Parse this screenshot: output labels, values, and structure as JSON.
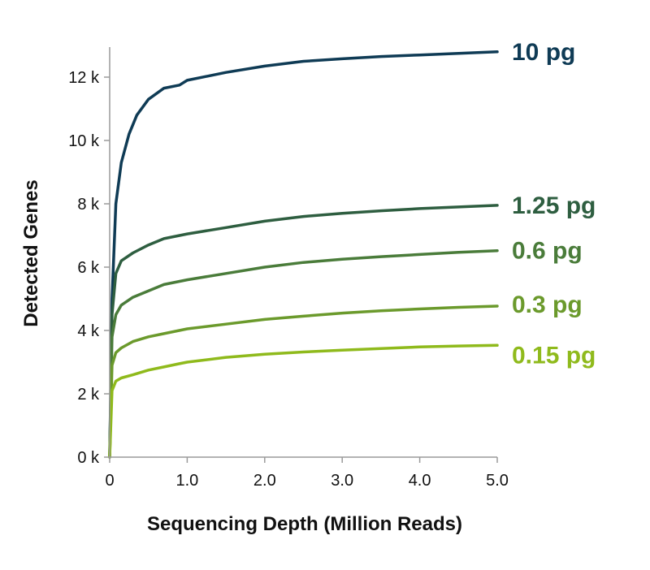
{
  "chart_data": {
    "type": "line",
    "title": "",
    "xlabel": "Sequencing Depth (Million Reads)",
    "ylabel": "Detected Genes",
    "xlim": [
      0,
      5
    ],
    "ylim": [
      0,
      12000
    ],
    "x_ticks": [
      0,
      1,
      2,
      3,
      4,
      5
    ],
    "x_tick_labels": [
      "0",
      "1.0",
      "2.0",
      "3.0",
      "4.0",
      "5.0"
    ],
    "y_ticks": [
      0,
      2000,
      4000,
      6000,
      8000,
      10000,
      12000
    ],
    "y_tick_labels": [
      "0 k",
      "2 k",
      "4 k",
      "6 k",
      "8 k",
      "10 k",
      "12 k"
    ],
    "grid": false,
    "legend": "labels at line ends (right)",
    "series": [
      {
        "name": "10 pg",
        "color": "#0f3b55",
        "points": [
          [
            0,
            0
          ],
          [
            0.03,
            5000
          ],
          [
            0.08,
            8000
          ],
          [
            0.15,
            9300
          ],
          [
            0.25,
            10200
          ],
          [
            0.35,
            10800
          ],
          [
            0.5,
            11300
          ],
          [
            0.7,
            11650
          ],
          [
            0.9,
            11750
          ],
          [
            1.0,
            11900
          ],
          [
            1.5,
            12150
          ],
          [
            2.0,
            12350
          ],
          [
            2.5,
            12500
          ],
          [
            3.0,
            12580
          ],
          [
            3.5,
            12650
          ],
          [
            4.0,
            12700
          ],
          [
            4.5,
            12750
          ],
          [
            5.0,
            12800
          ]
        ]
      },
      {
        "name": "1.25 pg",
        "color": "#2e5e40",
        "points": [
          [
            0,
            0
          ],
          [
            0.03,
            4500
          ],
          [
            0.08,
            5800
          ],
          [
            0.15,
            6200
          ],
          [
            0.3,
            6450
          ],
          [
            0.5,
            6700
          ],
          [
            0.7,
            6900
          ],
          [
            1.0,
            7050
          ],
          [
            1.5,
            7250
          ],
          [
            2.0,
            7450
          ],
          [
            2.5,
            7600
          ],
          [
            3.0,
            7700
          ],
          [
            3.5,
            7780
          ],
          [
            4.0,
            7850
          ],
          [
            4.5,
            7900
          ],
          [
            5.0,
            7950
          ]
        ]
      },
      {
        "name": "0.6 pg",
        "color": "#4a7c3a",
        "points": [
          [
            0,
            0
          ],
          [
            0.03,
            3800
          ],
          [
            0.08,
            4500
          ],
          [
            0.15,
            4800
          ],
          [
            0.3,
            5050
          ],
          [
            0.5,
            5250
          ],
          [
            0.7,
            5450
          ],
          [
            1.0,
            5600
          ],
          [
            1.5,
            5800
          ],
          [
            2.0,
            6000
          ],
          [
            2.5,
            6150
          ],
          [
            3.0,
            6250
          ],
          [
            3.5,
            6330
          ],
          [
            4.0,
            6400
          ],
          [
            4.5,
            6470
          ],
          [
            5.0,
            6520
          ]
        ]
      },
      {
        "name": "0.3 pg",
        "color": "#6b9a2c",
        "points": [
          [
            0,
            0
          ],
          [
            0.03,
            2900
          ],
          [
            0.08,
            3300
          ],
          [
            0.15,
            3450
          ],
          [
            0.3,
            3650
          ],
          [
            0.5,
            3800
          ],
          [
            0.7,
            3900
          ],
          [
            1.0,
            4050
          ],
          [
            1.5,
            4200
          ],
          [
            2.0,
            4350
          ],
          [
            2.5,
            4450
          ],
          [
            3.0,
            4550
          ],
          [
            3.5,
            4620
          ],
          [
            4.0,
            4680
          ],
          [
            4.5,
            4730
          ],
          [
            5.0,
            4770
          ]
        ]
      },
      {
        "name": "0.15 pg",
        "color": "#8fba1c",
        "points": [
          [
            0,
            0
          ],
          [
            0.03,
            2100
          ],
          [
            0.08,
            2400
          ],
          [
            0.15,
            2500
          ],
          [
            0.3,
            2600
          ],
          [
            0.5,
            2750
          ],
          [
            0.7,
            2850
          ],
          [
            0.9,
            2950
          ],
          [
            1.0,
            3000
          ],
          [
            1.5,
            3150
          ],
          [
            2.0,
            3250
          ],
          [
            2.5,
            3320
          ],
          [
            3.0,
            3380
          ],
          [
            3.5,
            3430
          ],
          [
            4.0,
            3480
          ],
          [
            4.5,
            3510
          ],
          [
            5.0,
            3530
          ]
        ]
      }
    ]
  }
}
